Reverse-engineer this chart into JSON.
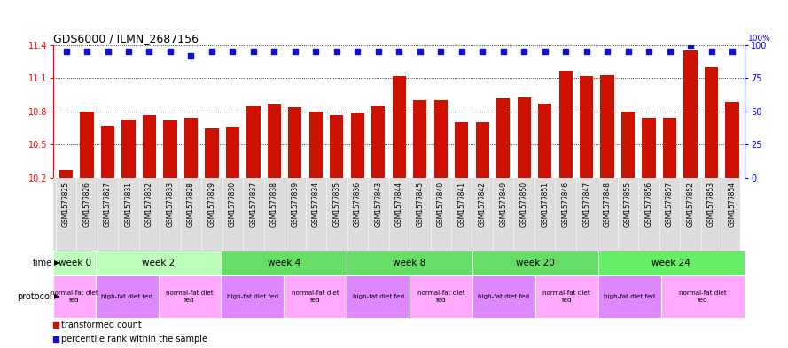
{
  "title": "GDS6000 / ILMN_2687156",
  "samples": [
    "GSM1577825",
    "GSM1577826",
    "GSM1577827",
    "GSM1577831",
    "GSM1577832",
    "GSM1577833",
    "GSM1577828",
    "GSM1577829",
    "GSM1577830",
    "GSM1577837",
    "GSM1577838",
    "GSM1577839",
    "GSM1577834",
    "GSM1577835",
    "GSM1577836",
    "GSM1577843",
    "GSM1577844",
    "GSM1577845",
    "GSM1577840",
    "GSM1577841",
    "GSM1577842",
    "GSM1577849",
    "GSM1577850",
    "GSM1577851",
    "GSM1577846",
    "GSM1577847",
    "GSM1577848",
    "GSM1577855",
    "GSM1577856",
    "GSM1577857",
    "GSM1577852",
    "GSM1577853",
    "GSM1577854"
  ],
  "bar_values": [
    10.27,
    10.8,
    10.67,
    10.73,
    10.77,
    10.72,
    10.74,
    10.65,
    10.66,
    10.85,
    10.86,
    10.84,
    10.8,
    10.77,
    10.78,
    10.85,
    11.12,
    10.9,
    10.9,
    10.7,
    10.7,
    10.92,
    10.93,
    10.87,
    11.17,
    11.12,
    11.13,
    10.8,
    10.74,
    10.74,
    11.35,
    11.2,
    10.89
  ],
  "percentile_values": [
    95,
    95,
    95,
    95,
    95,
    95,
    92,
    95,
    95,
    95,
    95,
    95,
    95,
    95,
    95,
    95,
    95,
    95,
    95,
    95,
    95,
    95,
    95,
    95,
    95,
    95,
    95,
    95,
    95,
    95,
    100,
    95,
    95
  ],
  "bar_color": "#cc1100",
  "dot_color": "#1111cc",
  "ylim_left": [
    10.2,
    11.4
  ],
  "ylim_right": [
    0,
    100
  ],
  "yticks_left": [
    10.2,
    10.5,
    10.8,
    11.1,
    11.4
  ],
  "yticks_right": [
    0,
    25,
    50,
    75,
    100
  ],
  "time_groups": [
    {
      "label": "week 0",
      "start": 0,
      "end": 2,
      "color": "#bbffbb"
    },
    {
      "label": "week 2",
      "start": 2,
      "end": 8,
      "color": "#bbffbb"
    },
    {
      "label": "week 4",
      "start": 8,
      "end": 14,
      "color": "#66dd66"
    },
    {
      "label": "week 8",
      "start": 14,
      "end": 20,
      "color": "#66dd66"
    },
    {
      "label": "week 20",
      "start": 20,
      "end": 26,
      "color": "#66dd66"
    },
    {
      "label": "week 24",
      "start": 26,
      "end": 33,
      "color": "#66ee66"
    }
  ],
  "protocol_groups": [
    {
      "label": "normal-fat diet\nfed",
      "start": 0,
      "end": 2,
      "color": "#ffaaff"
    },
    {
      "label": "high-fat diet fed",
      "start": 2,
      "end": 5,
      "color": "#dd88ff"
    },
    {
      "label": "normal-fat diet\nfed",
      "start": 5,
      "end": 8,
      "color": "#ffaaff"
    },
    {
      "label": "high-fat diet fed",
      "start": 8,
      "end": 11,
      "color": "#dd88ff"
    },
    {
      "label": "normal-fat diet\nfed",
      "start": 11,
      "end": 14,
      "color": "#ffaaff"
    },
    {
      "label": "high-fat diet fed",
      "start": 14,
      "end": 17,
      "color": "#dd88ff"
    },
    {
      "label": "normal-fat diet\nfed",
      "start": 17,
      "end": 20,
      "color": "#ffaaff"
    },
    {
      "label": "high-fat diet fed",
      "start": 20,
      "end": 23,
      "color": "#dd88ff"
    },
    {
      "label": "normal-fat diet\nfed",
      "start": 23,
      "end": 26,
      "color": "#ffaaff"
    },
    {
      "label": "high-fat diet fed",
      "start": 26,
      "end": 29,
      "color": "#dd88ff"
    },
    {
      "label": "normal-fat diet\nfed",
      "start": 29,
      "end": 33,
      "color": "#ffaaff"
    }
  ],
  "legend_bar_label": "transformed count",
  "legend_dot_label": "percentile rank within the sample",
  "bg_color": "#ffffff",
  "xtick_bg": "#dddddd"
}
